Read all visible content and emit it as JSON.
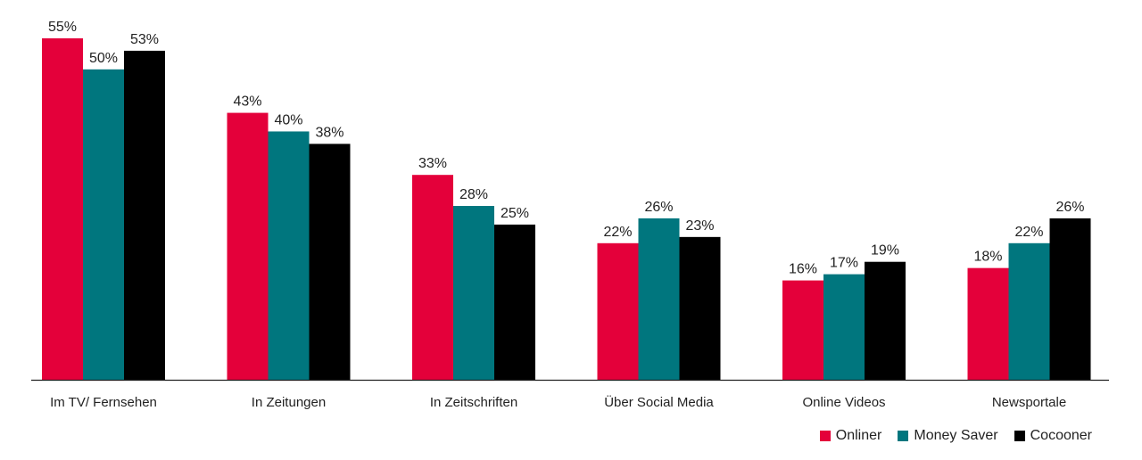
{
  "chart_data": {
    "type": "bar",
    "title": "",
    "xlabel": "",
    "ylabel": "",
    "ylim": [
      0,
      55
    ],
    "grid": false,
    "legend_position": "bottom-right",
    "categories": [
      "Im TV/ Fernsehen",
      "In Zeitungen",
      "In Zeitschriften",
      "Über Social Media",
      "Online Videos",
      "Newsportale"
    ],
    "series": [
      {
        "name": "Onliner",
        "color": "#e4003a",
        "values": [
          55,
          43,
          33,
          22,
          16,
          18
        ],
        "labels": [
          "55%",
          "43%",
          "33%",
          "22%",
          "16%",
          "18%"
        ]
      },
      {
        "name": "Money Saver",
        "color": "#00767e",
        "values": [
          50,
          40,
          28,
          26,
          17,
          22
        ],
        "labels": [
          "50%",
          "40%",
          "28%",
          "26%",
          "17%",
          "22%"
        ]
      },
      {
        "name": "Cocooner",
        "color": "#000000",
        "values": [
          53,
          38,
          25,
          23,
          19,
          26
        ],
        "labels": [
          "53%",
          "38%",
          "25%",
          "23%",
          "19%",
          "26%"
        ]
      }
    ]
  },
  "legend": {
    "items": [
      {
        "label": "Onliner",
        "color": "#e4003a"
      },
      {
        "label": "Money Saver",
        "color": "#00767e"
      },
      {
        "label": "Cocooner",
        "color": "#000000"
      }
    ]
  },
  "colors": {
    "axis": "#222222"
  }
}
